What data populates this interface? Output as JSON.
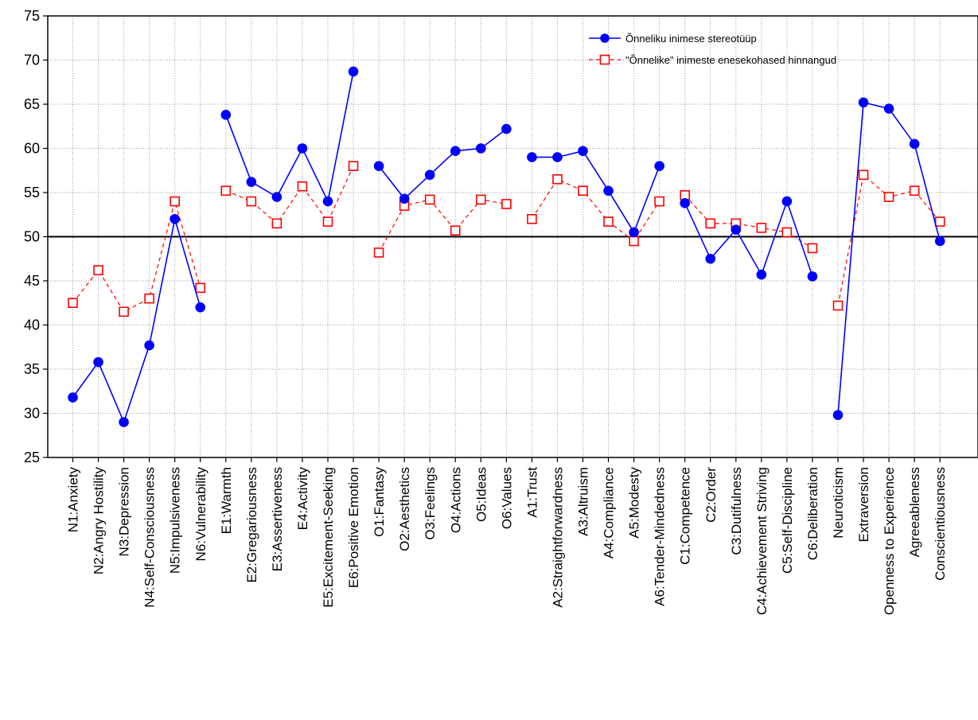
{
  "chart_data": {
    "type": "line",
    "ylim": [
      25,
      75
    ],
    "yticks": [
      25,
      30,
      35,
      40,
      45,
      50,
      55,
      60,
      65,
      70,
      75
    ],
    "reference_line": 50,
    "grid": true,
    "legend_position": "top-right",
    "categories": [
      "N1:Anxiety",
      "N2:Angry Hostility",
      "N3:Depression",
      "N4:Self-Consciousness",
      "N5:Impulsiveness",
      "N6:Vulnerability",
      "E1:Warmth",
      "E2:Gregariousness",
      "E3:Assertiveness",
      "E4:Activity",
      "E5:Excitement-Seeking",
      "E6:Positive Emotion",
      "O1:Fantasy",
      "O2:Aesthetics",
      "O3:Feelings",
      "O4:Actions",
      "O5:Ideas",
      "O6:Values",
      "A1:Trust",
      "A2:Straightforwardness",
      "A3:Altruism",
      "A4:Compliance",
      "A5:Modesty",
      "A6:Tender-Mindedness",
      "C1:Competence",
      "C2:Order",
      "C3:Dutifulness",
      "C4:Achievement Striving",
      "C5:Self-Discipline",
      "C6:Deliberation",
      "Neuroticism",
      "Extraversion",
      "Openness to Experience",
      "Agreeableness",
      "Conscientiousness"
    ],
    "segments": [
      [
        0,
        5
      ],
      [
        6,
        11
      ],
      [
        12,
        17
      ],
      [
        18,
        23
      ],
      [
        24,
        29
      ],
      [
        30,
        34
      ]
    ],
    "series": [
      {
        "name": "Õnneliku inimese stereotüüp",
        "color": "#0000ff",
        "marker": "filled-circle",
        "line_style": "solid",
        "values": [
          31.8,
          35.8,
          29.0,
          37.7,
          52.0,
          42.0,
          63.8,
          56.2,
          54.5,
          60.0,
          54.0,
          68.7,
          58.0,
          54.3,
          57.0,
          59.7,
          60.0,
          62.2,
          59.0,
          59.0,
          59.7,
          55.2,
          50.5,
          58.0,
          53.8,
          47.5,
          50.8,
          45.7,
          54.0,
          45.5,
          29.8,
          65.2,
          64.5,
          60.5,
          49.5
        ]
      },
      {
        "name": "\"Õnnelike\" inimeste enesekohased hinnangud",
        "color": "#ff0000",
        "marker": "open-square",
        "line_style": "dashed",
        "values": [
          42.5,
          46.2,
          41.5,
          43.0,
          54.0,
          44.2,
          55.2,
          54.0,
          51.5,
          55.7,
          51.7,
          58.0,
          48.2,
          53.5,
          54.2,
          50.7,
          54.2,
          53.7,
          52.0,
          56.5,
          55.2,
          51.7,
          49.5,
          54.0,
          54.7,
          51.5,
          51.5,
          51.0,
          50.5,
          48.7,
          42.2,
          57.0,
          54.5,
          55.2,
          51.7
        ]
      }
    ]
  }
}
